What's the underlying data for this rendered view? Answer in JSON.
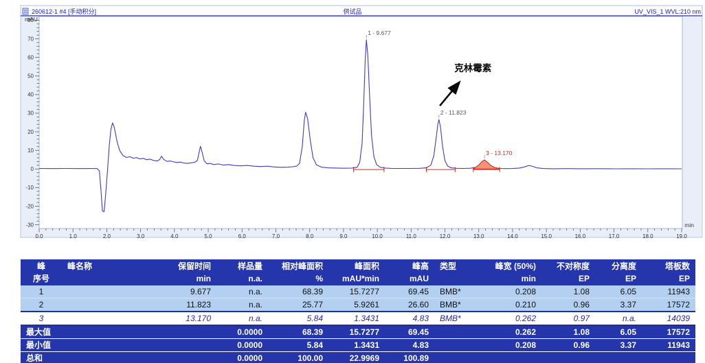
{
  "chart_data": {
    "type": "line",
    "sample": "260612-1 #4 [手动积分]",
    "title": "供试品",
    "detector": "UV_VIS_1 WVL:210 nm",
    "xlabel": "min",
    "ylabel": "mAU",
    "xlim": [
      0,
      19.2
    ],
    "ylim": [
      -32,
      82
    ],
    "x_ticks": [
      0,
      1,
      2,
      3,
      4,
      5,
      6,
      7,
      8,
      9,
      10,
      11,
      12,
      13,
      14,
      15,
      16,
      17,
      18,
      19
    ],
    "y_ticks": [
      -30,
      -20,
      -10,
      0,
      10,
      20,
      30,
      40,
      50,
      60,
      70,
      80
    ],
    "grid": false,
    "trace_color": "#3b3bd0",
    "fill_color": "#f29478",
    "integration_color": "#d42a10",
    "annotation": {
      "text": "克林霉素",
      "text_at": [
        12.28,
        52.5
      ],
      "arrow_from": [
        11.85,
        34.0
      ],
      "arrow_to": [
        12.42,
        46.5
      ]
    },
    "peaks": [
      {
        "label": "1 - 9.677",
        "rt": 9.677,
        "height_mAU": 69.45,
        "label_color": "#55555f",
        "filled": false
      },
      {
        "label": "2 - 11.823",
        "rt": 11.823,
        "height_mAU": 26.6,
        "label_color": "#55555f",
        "filled": false
      },
      {
        "label": "3 - 13.170",
        "rt": 13.17,
        "height_mAU": 4.83,
        "label_color": "#d42a10",
        "filled": true,
        "fill_from": 12.84,
        "fill_to": 13.62
      }
    ],
    "integration_baselines": [
      {
        "from": 9.3,
        "to": 10.2
      },
      {
        "from": 11.45,
        "to": 12.3
      },
      {
        "from": 12.84,
        "to": 13.62
      }
    ],
    "trace": [
      [
        0,
        0.3
      ],
      [
        0.4,
        0.2
      ],
      [
        0.8,
        0.3
      ],
      [
        1.2,
        0.2
      ],
      [
        1.5,
        0.3
      ],
      [
        1.72,
        0.2
      ],
      [
        1.78,
        -1
      ],
      [
        1.83,
        -12
      ],
      [
        1.87,
        -22.5
      ],
      [
        1.92,
        -23
      ],
      [
        1.97,
        -13
      ],
      [
        2.02,
        -1
      ],
      [
        2.07,
        12
      ],
      [
        2.12,
        21
      ],
      [
        2.17,
        24.8
      ],
      [
        2.22,
        22.5
      ],
      [
        2.3,
        15
      ],
      [
        2.38,
        10
      ],
      [
        2.48,
        7.2
      ],
      [
        2.58,
        6.2
      ],
      [
        2.68,
        6.6
      ],
      [
        2.78,
        5.8
      ],
      [
        2.88,
        6.1
      ],
      [
        2.98,
        5.4
      ],
      [
        3.08,
        5.7
      ],
      [
        3.18,
        5.0
      ],
      [
        3.28,
        5.3
      ],
      [
        3.38,
        4.6
      ],
      [
        3.48,
        4.3
      ],
      [
        3.56,
        5.0
      ],
      [
        3.62,
        6.9
      ],
      [
        3.68,
        5.2
      ],
      [
        3.78,
        4.1
      ],
      [
        3.88,
        4.3
      ],
      [
        3.98,
        3.8
      ],
      [
        4.08,
        3.5
      ],
      [
        4.18,
        3.7
      ],
      [
        4.28,
        3.2
      ],
      [
        4.38,
        3.0
      ],
      [
        4.5,
        3.3
      ],
      [
        4.6,
        3.6
      ],
      [
        4.68,
        4.6
      ],
      [
        4.73,
        9.0
      ],
      [
        4.77,
        12.2
      ],
      [
        4.82,
        9.0
      ],
      [
        4.88,
        4.5
      ],
      [
        4.96,
        2.8
      ],
      [
        5.06,
        3.0
      ],
      [
        5.16,
        2.4
      ],
      [
        5.3,
        2.7
      ],
      [
        5.45,
        2.1
      ],
      [
        5.6,
        2.4
      ],
      [
        5.75,
        1.9
      ],
      [
        5.95,
        1.7
      ],
      [
        6.15,
        1.9
      ],
      [
        6.35,
        1.5
      ],
      [
        6.55,
        1.3
      ],
      [
        6.75,
        1.5
      ],
      [
        6.95,
        1.1
      ],
      [
        7.15,
        0.9
      ],
      [
        7.35,
        1.0
      ],
      [
        7.5,
        1.2
      ],
      [
        7.62,
        1.6
      ],
      [
        7.7,
        3.0
      ],
      [
        7.78,
        12
      ],
      [
        7.84,
        26
      ],
      [
        7.88,
        30.5
      ],
      [
        7.94,
        27
      ],
      [
        8.02,
        15
      ],
      [
        8.1,
        6
      ],
      [
        8.2,
        2.2
      ],
      [
        8.35,
        1.0
      ],
      [
        8.55,
        0.6
      ],
      [
        8.8,
        0.5
      ],
      [
        9.05,
        0.4
      ],
      [
        9.25,
        0.5
      ],
      [
        9.4,
        0.9
      ],
      [
        9.48,
        3.5
      ],
      [
        9.55,
        14
      ],
      [
        9.6,
        36
      ],
      [
        9.64,
        58
      ],
      [
        9.677,
        69.5
      ],
      [
        9.72,
        61
      ],
      [
        9.77,
        40
      ],
      [
        9.83,
        18
      ],
      [
        9.9,
        6.5
      ],
      [
        9.98,
        2.4
      ],
      [
        10.08,
        1.0
      ],
      [
        10.22,
        0.5
      ],
      [
        10.45,
        0.3
      ],
      [
        10.7,
        0.3
      ],
      [
        11.0,
        0.3
      ],
      [
        11.25,
        0.35
      ],
      [
        11.45,
        0.6
      ],
      [
        11.58,
        2.0
      ],
      [
        11.67,
        7
      ],
      [
        11.74,
        16.5
      ],
      [
        11.79,
        24
      ],
      [
        11.823,
        26.6
      ],
      [
        11.87,
        22.5
      ],
      [
        11.93,
        12
      ],
      [
        12.0,
        4.5
      ],
      [
        12.08,
        1.6
      ],
      [
        12.18,
        0.6
      ],
      [
        12.35,
        0.35
      ],
      [
        12.55,
        0.3
      ],
      [
        12.75,
        0.4
      ],
      [
        12.9,
        0.8
      ],
      [
        13.0,
        2.0
      ],
      [
        13.09,
        3.9
      ],
      [
        13.17,
        4.85
      ],
      [
        13.26,
        3.6
      ],
      [
        13.36,
        1.8
      ],
      [
        13.48,
        0.7
      ],
      [
        13.62,
        0.3
      ],
      [
        13.8,
        0.2
      ],
      [
        14.0,
        0.25
      ],
      [
        14.2,
        0.5
      ],
      [
        14.35,
        1.1
      ],
      [
        14.48,
        1.9
      ],
      [
        14.6,
        1.4
      ],
      [
        14.72,
        0.6
      ],
      [
        14.9,
        0.25
      ],
      [
        15.2,
        0.15
      ],
      [
        15.6,
        0.2
      ],
      [
        16.0,
        0.12
      ],
      [
        16.5,
        0.18
      ],
      [
        17.0,
        0.1
      ],
      [
        17.5,
        0.15
      ],
      [
        18.0,
        0.1
      ],
      [
        18.5,
        0.14
      ],
      [
        19.0,
        0.08
      ]
    ]
  },
  "table": {
    "columns": [
      {
        "key": "no",
        "label": "峰",
        "unit": "序号",
        "align": "center"
      },
      {
        "key": "name",
        "label": "峰名称",
        "unit": "",
        "align": "left"
      },
      {
        "key": "rt",
        "label": "保留时间",
        "unit": "min",
        "align": "right"
      },
      {
        "key": "amount",
        "label": "样品量",
        "unit": "n.a.",
        "align": "right"
      },
      {
        "key": "rel_area",
        "label": "相对峰面积",
        "unit": "%",
        "align": "right"
      },
      {
        "key": "area",
        "label": "峰面积",
        "unit": "mAU*min",
        "align": "right"
      },
      {
        "key": "height",
        "label": "峰高",
        "unit": "mAU",
        "align": "right"
      },
      {
        "key": "type",
        "label": "类型",
        "unit": "",
        "align": "left"
      },
      {
        "key": "width50",
        "label": "峰宽 (50%)",
        "unit": "min",
        "align": "right"
      },
      {
        "key": "asym",
        "label": "不对称度",
        "unit": "EP",
        "align": "right"
      },
      {
        "key": "res",
        "label": "分离度",
        "unit": "EP",
        "align": "right"
      },
      {
        "key": "plates",
        "label": "塔板数",
        "unit": "EP",
        "align": "right"
      }
    ],
    "rows": [
      {
        "no": "1",
        "name": "",
        "rt": "9.677",
        "amount": "n.a.",
        "rel_area": "68.39",
        "area": "15.7277",
        "height": "69.45",
        "type": "BMB*",
        "width50": "0.208",
        "asym": "1.08",
        "res": "6.05",
        "plates": "11943",
        "style": "normal"
      },
      {
        "no": "2",
        "name": "",
        "rt": "11.823",
        "amount": "n.a.",
        "rel_area": "25.77",
        "area": "5.9261",
        "height": "26.60",
        "type": "BMB*",
        "width50": "0.210",
        "asym": "0.96",
        "res": "3.37",
        "plates": "17572",
        "style": "normal"
      },
      {
        "no": "3",
        "name": "",
        "rt": "13.170",
        "amount": "n.a.",
        "rel_area": "5.84",
        "area": "1.3431",
        "height": "4.83",
        "type": "BMB*",
        "width50": "0.262",
        "asym": "0.97",
        "res": "n.a.",
        "plates": "14039",
        "style": "italic"
      }
    ],
    "summary_rows": [
      {
        "label": "最大值",
        "rt": "",
        "amount": "0.0000",
        "rel_area": "68.39",
        "area": "15.7277",
        "height": "69.45",
        "type": "",
        "width50": "0.262",
        "asym": "1.08",
        "res": "6.05",
        "plates": "17572"
      },
      {
        "label": "最小值",
        "rt": "",
        "amount": "0.0000",
        "rel_area": "5.84",
        "area": "1.3431",
        "height": "4.83",
        "type": "",
        "width50": "0.208",
        "asym": "0.96",
        "res": "3.37",
        "plates": "11943"
      },
      {
        "label": "总和",
        "rt": "",
        "amount": "0.0000",
        "rel_area": "100.00",
        "area": "22.9969",
        "height": "100.89",
        "type": "",
        "width50": "",
        "asym": "",
        "res": "",
        "plates": ""
      }
    ]
  }
}
